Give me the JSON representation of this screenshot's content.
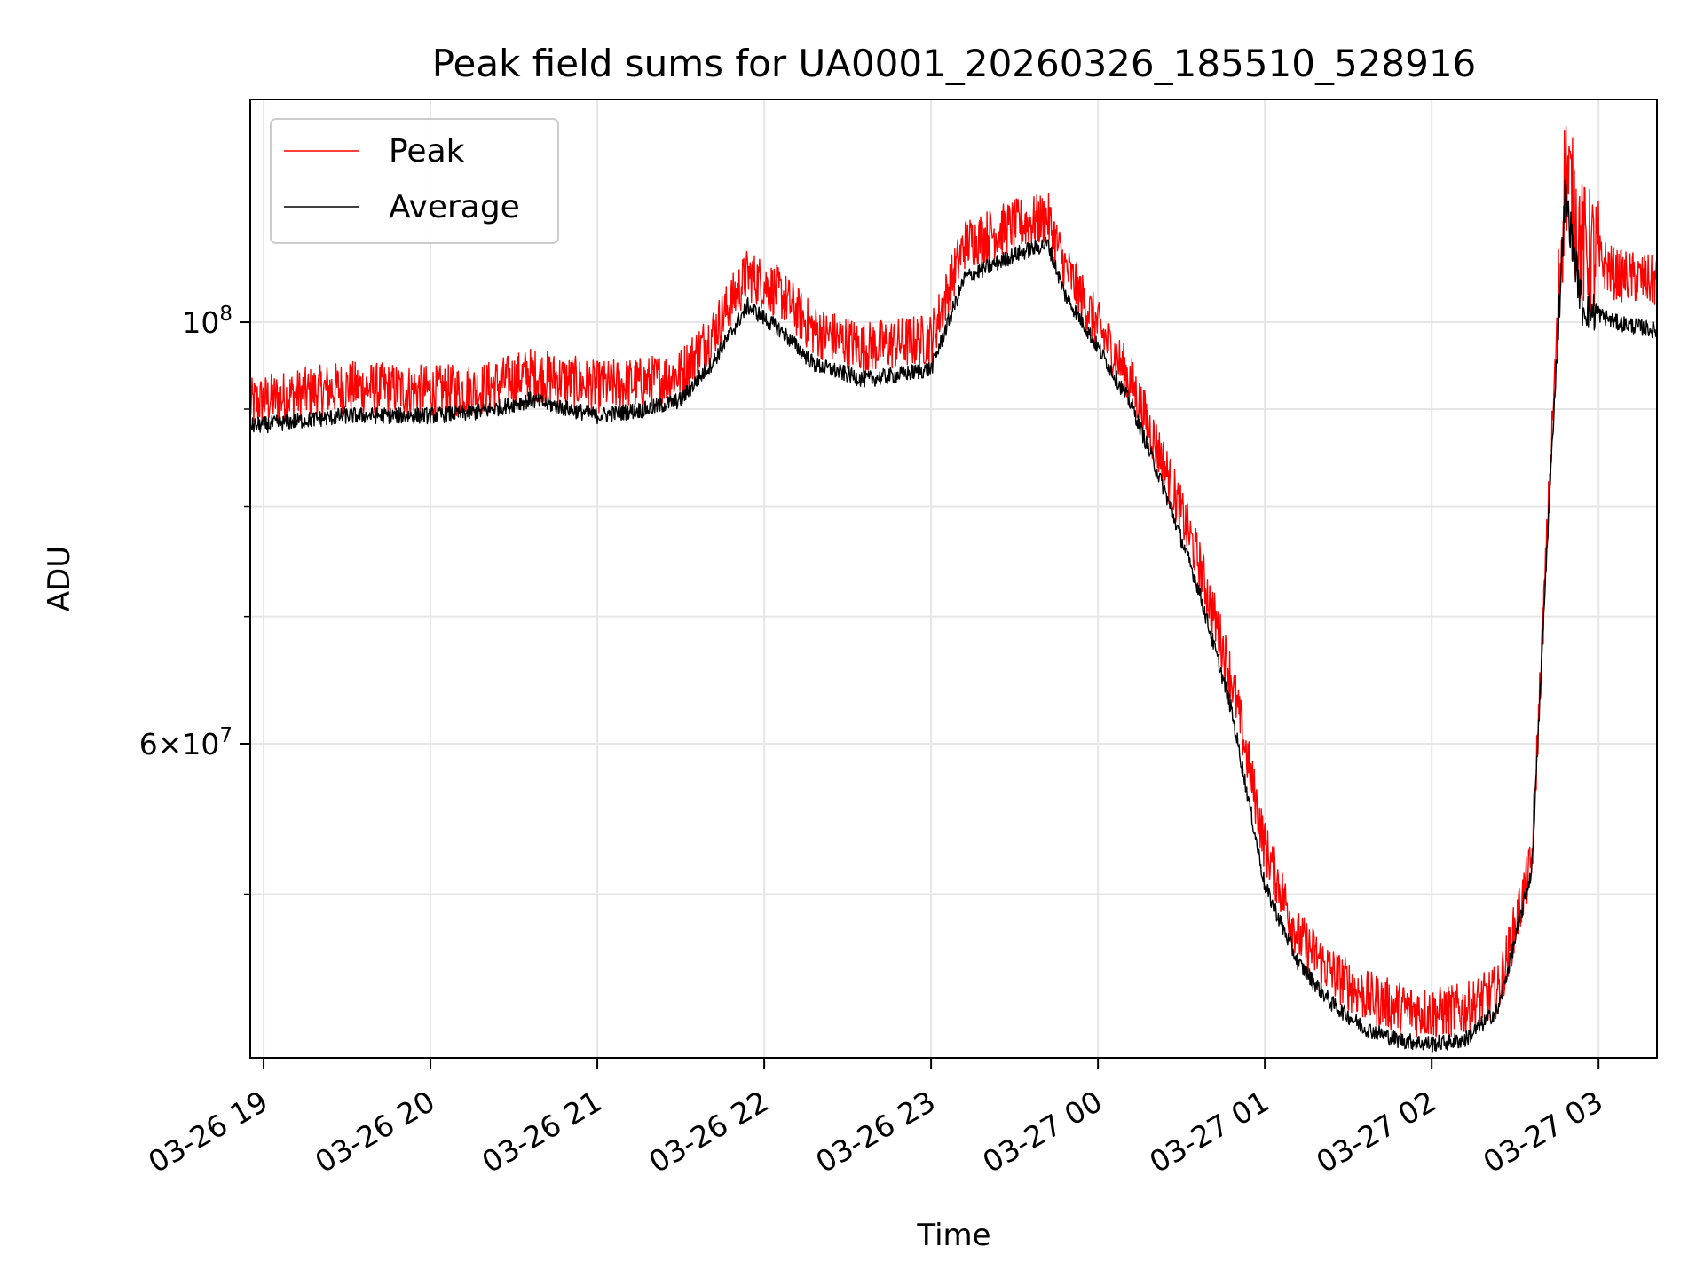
{
  "chart_data": {
    "type": "line",
    "title": "Peak field sums for UA0001_20260326_185510_528916",
    "xlabel": "Time",
    "ylabel": "ADU",
    "x_unit": "hours since 03-26 19:00",
    "xlim": [
      -0.08,
      8.35
    ],
    "ylim": [
      41000000,
      131000000
    ],
    "yscale": "log",
    "grid": true,
    "legend_position": "top-left",
    "x_ticks": [
      {
        "value": 0,
        "label": "03-26 19"
      },
      {
        "value": 1,
        "label": "03-26 20"
      },
      {
        "value": 2,
        "label": "03-26 21"
      },
      {
        "value": 3,
        "label": "03-26 22"
      },
      {
        "value": 4,
        "label": "03-26 23"
      },
      {
        "value": 5,
        "label": "03-27 00"
      },
      {
        "value": 6,
        "label": "03-27 01"
      },
      {
        "value": 7,
        "label": "03-27 02"
      },
      {
        "value": 8,
        "label": "03-27 03"
      }
    ],
    "y_major_ticks": [
      {
        "value": 100000000,
        "base": "10",
        "exp": "8"
      },
      {
        "value": 60000000,
        "mantissa": "6",
        "base": "10",
        "exp": "7"
      }
    ],
    "y_minor_ticks": [
      50000000,
      70000000,
      80000000,
      90000000
    ],
    "series": [
      {
        "name": "Peak",
        "color": "#ff0000",
        "noise": 0.032,
        "x": [
          -0.08,
          0.0,
          0.5,
          1.0,
          1.3,
          1.6,
          2.0,
          2.3,
          2.5,
          2.7,
          2.9,
          3.1,
          3.3,
          3.6,
          3.8,
          4.0,
          4.2,
          4.5,
          4.7,
          4.8,
          5.0,
          5.2,
          5.4,
          5.6,
          5.8,
          6.0,
          6.2,
          6.4,
          6.6,
          6.8,
          7.0,
          7.2,
          7.4,
          7.6,
          7.7,
          7.8,
          7.9,
          8.1,
          8.35
        ],
        "values": [
          90500000,
          91000000,
          92500000,
          92000000,
          92200000,
          94000000,
          92500000,
          93000000,
          94000000,
          99000000,
          106000000,
          103500000,
          99000000,
          97000000,
          97500000,
          98000000,
          110000000,
          112500000,
          113500000,
          107000000,
          99500000,
          93000000,
          84000000,
          75000000,
          65000000,
          53000000,
          47500000,
          45500000,
          44200000,
          43600000,
          43300000,
          43500000,
          44500000,
          52000000,
          80000000,
          121000000,
          110000000,
          106000000,
          105000000
        ]
      },
      {
        "name": "Average",
        "color": "#000000",
        "noise": 0.01,
        "x": [
          -0.08,
          0.0,
          0.5,
          1.0,
          1.3,
          1.6,
          2.0,
          2.3,
          2.5,
          2.7,
          2.9,
          3.1,
          3.3,
          3.6,
          3.8,
          4.0,
          4.2,
          4.5,
          4.7,
          4.8,
          5.0,
          5.2,
          5.4,
          5.6,
          5.8,
          6.0,
          6.2,
          6.4,
          6.6,
          6.8,
          7.0,
          7.2,
          7.4,
          7.6,
          7.7,
          7.8,
          7.9,
          8.1,
          8.35
        ],
        "values": [
          88200000,
          88300000,
          89300000,
          89300000,
          89700000,
          91000000,
          89300000,
          90000000,
          91000000,
          95500000,
          102000000,
          99000000,
          95000000,
          93300000,
          93800000,
          94500000,
          105500000,
          108500000,
          110000000,
          103500000,
          97000000,
          90500000,
          81500000,
          72500000,
          62500000,
          50500000,
          46000000,
          43800000,
          42500000,
          41900000,
          41700000,
          41900000,
          43500000,
          51500000,
          79000000,
          117000000,
          102000000,
          100000000,
          99000000
        ]
      }
    ]
  }
}
